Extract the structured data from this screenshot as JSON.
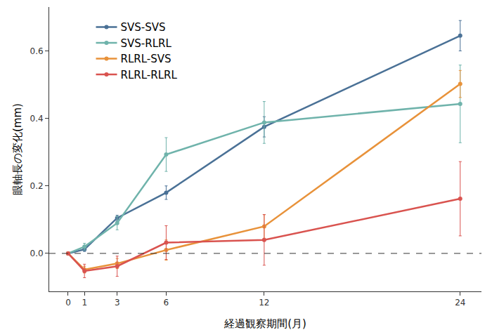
{
  "chart_data": {
    "type": "line",
    "x_label": "経過観察期間(月)",
    "y_label": "眼軸長の変化(mm)",
    "x": [
      0,
      1,
      3,
      6,
      12,
      24
    ],
    "series": [
      {
        "name": "SVS-SVS",
        "color": "#4a7196",
        "marker": "circle",
        "values": [
          0,
          0.012,
          0.105,
          0.18,
          0.375,
          0.645
        ],
        "errors": [
          0,
          0.006,
          0.008,
          0.02,
          0.03,
          0.045
        ]
      },
      {
        "name": "SVS-RLRL",
        "color": "#6fb3ab",
        "marker": "circle",
        "values": [
          0,
          0.02,
          0.09,
          0.293,
          0.388,
          0.443
        ],
        "errors": [
          0,
          0.01,
          0.02,
          0.05,
          0.062,
          0.115
        ]
      },
      {
        "name": "RLRL-SVS",
        "color": "#e8923a",
        "marker": "circle",
        "values": [
          0,
          -0.048,
          -0.03,
          0.01,
          0.08,
          0.502
        ],
        "errors": [
          0,
          0.01,
          0.015,
          0.03,
          0.035,
          0.04
        ]
      },
      {
        "name": "RLRL-RLRL",
        "color": "#d9534f",
        "marker": "circle",
        "values": [
          0,
          -0.052,
          -0.038,
          0.032,
          0.04,
          0.162
        ],
        "errors": [
          0,
          0.02,
          0.03,
          0.05,
          0.075,
          0.11
        ]
      }
    ],
    "xlim": [
      -1.16,
      25.3
    ],
    "xticks": [
      0,
      1,
      3,
      6,
      12,
      24
    ],
    "ylim": [
      -0.1125,
      0.73
    ],
    "yticks": [
      {
        "value": 0,
        "label": "0.0"
      },
      0.2,
      0.4,
      0.6
    ],
    "hline": {
      "value": 0,
      "line_style": "dash"
    },
    "grid": false,
    "legend": "upper left"
  }
}
